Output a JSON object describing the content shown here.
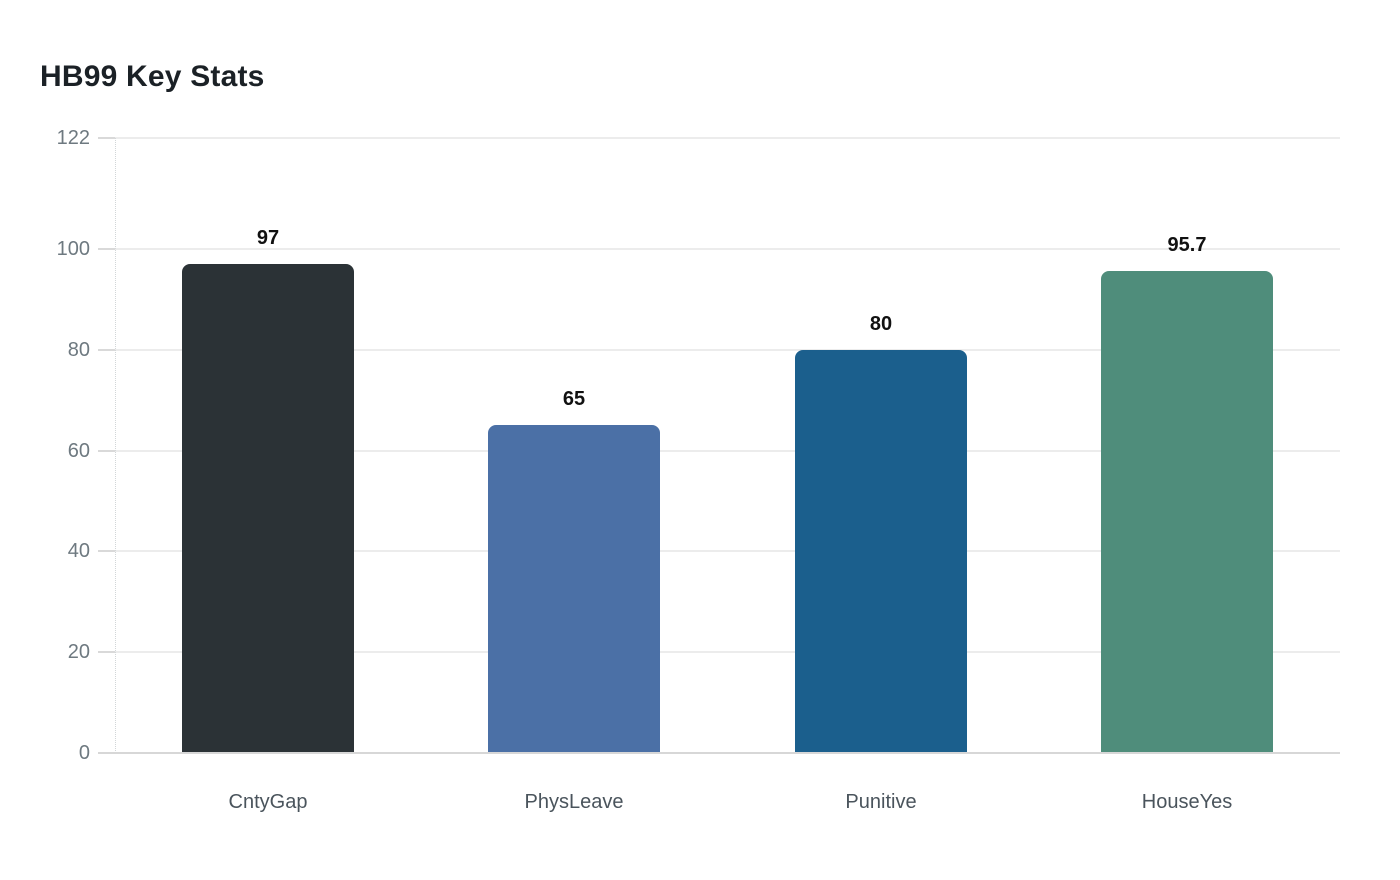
{
  "chart_data": {
    "type": "bar",
    "title": "HB99 Key Stats",
    "categories": [
      "CntyGap",
      "PhysLeave",
      "Punitive",
      "HouseYes"
    ],
    "values": [
      97,
      65,
      80,
      95.7
    ],
    "value_labels": [
      "97",
      "65",
      "80",
      "95.7"
    ],
    "bar_colors": [
      "#2b3236",
      "#4b70a6",
      "#1b5f8d",
      "#4f8d7b"
    ],
    "xlabel": "",
    "ylabel": "",
    "y_ticks": [
      0,
      20,
      40,
      60,
      80,
      100,
      122
    ],
    "y_tick_labels": [
      "0",
      "20",
      "40",
      "60",
      "80",
      "100",
      "122"
    ],
    "ylim": [
      0,
      122
    ],
    "grid": true,
    "legend": false,
    "colors": {
      "background": "#ffffff",
      "title_text": "#1b2126",
      "tick_label_text": "#6e7980",
      "category_label_text": "#4a545c",
      "value_label_text": "#111111",
      "gridline": "#ececec",
      "axis_line": "#d7d7d7"
    }
  }
}
